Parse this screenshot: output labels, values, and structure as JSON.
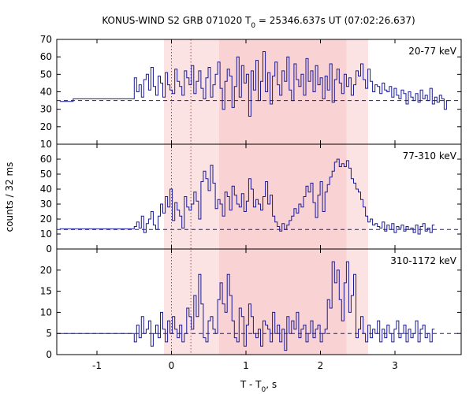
{
  "chart_data": {
    "type": "line",
    "title_main": "KONUS-WIND S2 GRB 071020 T",
    "title_sub": "0",
    "title_rest": " = 25346.637s UT (07:02:26.637)",
    "xlabel_main": "T - T",
    "xlabel_sub": "0",
    "xlabel_rest": ", s",
    "ylabel": "counts / 32 ms",
    "xlim": [
      -1.5,
      3.88
    ],
    "x_ticks": [
      "-1",
      "0",
      "1",
      "2",
      "3"
    ],
    "x_tick_values": [
      -1,
      0,
      1,
      2,
      3
    ],
    "shaded_intervals": [
      {
        "start": -0.1,
        "end": 0.64,
        "color": "#fbe3e3"
      },
      {
        "start": 0.64,
        "end": 2.35,
        "color": "#f9d3d3"
      },
      {
        "start": 2.35,
        "end": 2.64,
        "color": "#fbe3e3"
      }
    ],
    "vertical_markers": [
      0.0,
      0.26
    ],
    "line_color": "#1a1a99",
    "panels": [
      {
        "band": "20-77 keV",
        "ylim": [
          10,
          70
        ],
        "yticks": [
          "10",
          "20",
          "30",
          "40",
          "50",
          "60",
          "70"
        ],
        "ytick_values": [
          10,
          20,
          30,
          40,
          50,
          60,
          70
        ],
        "background": 35.0,
        "pre_steps": [
          [
            -1.5,
            34.5
          ],
          [
            -1.32,
            36.0
          ]
        ],
        "bin_start": -0.5,
        "bin_width": 0.032,
        "values": [
          48,
          40,
          44,
          37,
          47,
          50,
          41,
          54,
          43,
          38,
          49,
          45,
          37,
          51,
          44,
          41,
          39,
          53,
          46,
          43,
          38,
          52,
          48,
          44,
          55,
          39,
          46,
          52,
          42,
          36,
          48,
          54,
          37,
          44,
          50,
          57,
          42,
          30,
          46,
          53,
          49,
          31,
          43,
          60,
          37,
          55,
          45,
          50,
          26,
          52,
          41,
          58,
          35,
          46,
          63,
          40,
          51,
          33,
          49,
          57,
          44,
          38,
          52,
          46,
          60,
          41,
          35,
          56,
          47,
          43,
          50,
          38,
          59,
          46,
          52,
          40,
          55,
          44,
          48,
          36,
          49,
          41,
          56,
          34,
          47,
          53,
          45,
          39,
          50,
          43,
          48,
          38,
          44,
          52,
          49,
          56,
          47,
          42,
          53,
          46,
          40,
          44,
          43,
          39,
          45,
          41,
          40,
          43,
          37,
          42,
          38,
          36,
          41,
          39,
          33,
          40,
          37,
          35,
          39,
          34,
          41,
          36,
          38,
          35,
          42,
          33,
          37,
          34,
          38,
          36,
          30,
          35
        ]
      },
      {
        "band": "77-310 keV",
        "ylim": [
          0,
          70
        ],
        "yticks": [
          "0",
          "10",
          "20",
          "30",
          "40",
          "50",
          "60"
        ],
        "ytick_values": [
          0,
          10,
          20,
          30,
          40,
          50,
          60
        ],
        "background": 13.0,
        "pre_steps": [
          [
            -1.5,
            13.5
          ]
        ],
        "bin_start": -0.5,
        "bin_width": 0.032,
        "values": [
          15,
          18,
          14,
          22,
          11,
          17,
          20,
          25,
          16,
          13,
          22,
          30,
          24,
          35,
          28,
          40,
          19,
          31,
          26,
          22,
          14,
          35,
          28,
          26,
          30,
          38,
          32,
          20,
          45,
          52,
          47,
          39,
          56,
          44,
          27,
          33,
          30,
          22,
          38,
          35,
          26,
          42,
          36,
          30,
          28,
          37,
          25,
          32,
          47,
          40,
          28,
          33,
          30,
          26,
          35,
          45,
          30,
          36,
          22,
          18,
          15,
          12,
          17,
          13,
          16,
          19,
          22,
          27,
          24,
          30,
          28,
          35,
          42,
          38,
          44,
          31,
          21,
          36,
          45,
          25,
          38,
          43,
          48,
          52,
          58,
          60,
          55,
          57,
          55,
          59,
          54,
          47,
          44,
          40,
          38,
          33,
          28,
          22,
          18,
          20,
          16,
          17,
          15,
          14,
          18,
          12,
          16,
          13,
          17,
          11,
          15,
          14,
          16,
          12,
          15,
          13,
          14,
          11,
          16,
          10,
          15,
          17,
          12,
          14,
          11,
          16
        ]
      },
      {
        "band": "310-1172 keV",
        "ylim": [
          0,
          25
        ],
        "yticks": [
          "0",
          "5",
          "10",
          "15",
          "20"
        ],
        "ytick_values": [
          0,
          5,
          10,
          15,
          20
        ],
        "background": 5.0,
        "pre_steps": [
          [
            -1.5,
            5.0
          ]
        ],
        "bin_start": -0.5,
        "bin_width": 0.032,
        "values": [
          3,
          7,
          4,
          9,
          5,
          6,
          8,
          2,
          5,
          7,
          4,
          10,
          6,
          3,
          8,
          5,
          9,
          6,
          4,
          7,
          3,
          5,
          11,
          9,
          6,
          14,
          9,
          19,
          12,
          4,
          3,
          8,
          9,
          6,
          5,
          13,
          17,
          12,
          10,
          19,
          14,
          8,
          4,
          3,
          11,
          9,
          2,
          7,
          12,
          9,
          5,
          4,
          6,
          2,
          8,
          7,
          6,
          3,
          10,
          5,
          7,
          3,
          6,
          1,
          9,
          5,
          8,
          6,
          10,
          4,
          6,
          7,
          3,
          5,
          8,
          4,
          6,
          7,
          3,
          5,
          6,
          13,
          11,
          22,
          17,
          20,
          13,
          8,
          17,
          22,
          10,
          14,
          19,
          4,
          6,
          9,
          5,
          3,
          7,
          4,
          6,
          5,
          8,
          3,
          6,
          4,
          7,
          5,
          3,
          6,
          8,
          4,
          5,
          7,
          3,
          6,
          4,
          5,
          8,
          3,
          6,
          7,
          4,
          5,
          3,
          6
        ]
      }
    ]
  }
}
